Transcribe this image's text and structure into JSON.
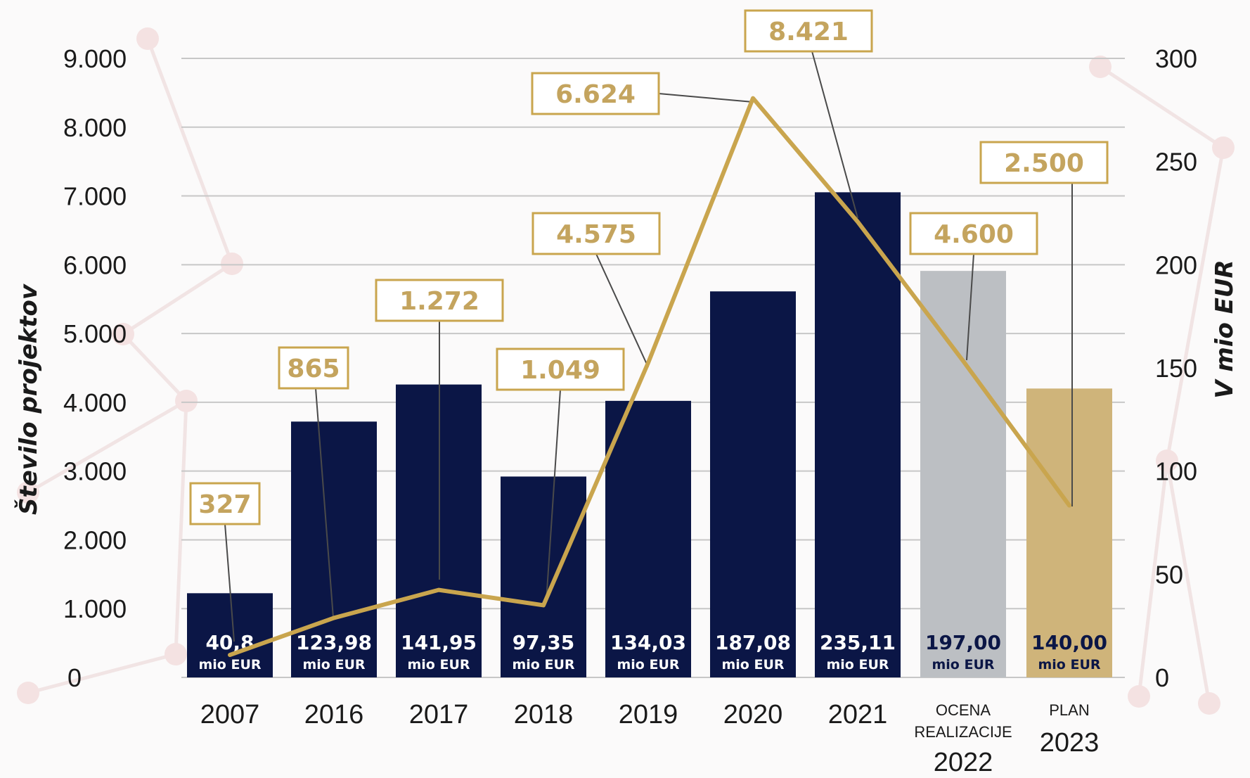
{
  "chart_data": {
    "type": "bar",
    "left_axis": {
      "label": "Število projektov",
      "ylim": [
        0,
        9000
      ],
      "ticks": [
        "0",
        "1.000",
        "2.000",
        "3.000",
        "4.000",
        "5.000",
        "6.000",
        "7.000",
        "8.000",
        "9.000"
      ]
    },
    "right_axis": {
      "label": "V mio EUR",
      "ylim": [
        0,
        300
      ],
      "ticks": [
        "0",
        "50",
        "100",
        "150",
        "200",
        "250",
        "300"
      ]
    },
    "categories": [
      {
        "label": "2007"
      },
      {
        "label": "2016"
      },
      {
        "label": "2017"
      },
      {
        "label": "2018"
      },
      {
        "label": "2019"
      },
      {
        "label": "2020"
      },
      {
        "label": "2021"
      },
      {
        "label": "2022",
        "sublabel": [
          "OCENA",
          "REALIZACIJE"
        ]
      },
      {
        "label": "2023",
        "sublabel": [
          "PLAN"
        ]
      }
    ],
    "series": [
      {
        "type": "bar",
        "axis": "right",
        "values": [
          40.8,
          123.98,
          141.95,
          97.35,
          134.03,
          187.08,
          235.11,
          197.0,
          140.0
        ],
        "value_labels": [
          "40,8",
          "123,98",
          "141,95",
          "97,35",
          "134,03",
          "187,08",
          "235,11",
          "197,00",
          "140,00"
        ],
        "unit_label": "mio EUR",
        "colors": [
          "#0b1646",
          "#0b1646",
          "#0b1646",
          "#0b1646",
          "#0b1646",
          "#0b1646",
          "#0b1646",
          "#bcbfc3",
          "#cfb47a"
        ]
      },
      {
        "type": "line",
        "axis": "left",
        "values": [
          327,
          865,
          1272,
          1049,
          4575,
          8421,
          6624,
          4600,
          2500
        ],
        "value_labels": [
          "327",
          "865",
          "1.272",
          "1.049",
          "4.575",
          "8.421",
          "6.624",
          "4.600",
          "2.500"
        ],
        "color": "#c9a54e"
      }
    ],
    "grid": true
  }
}
